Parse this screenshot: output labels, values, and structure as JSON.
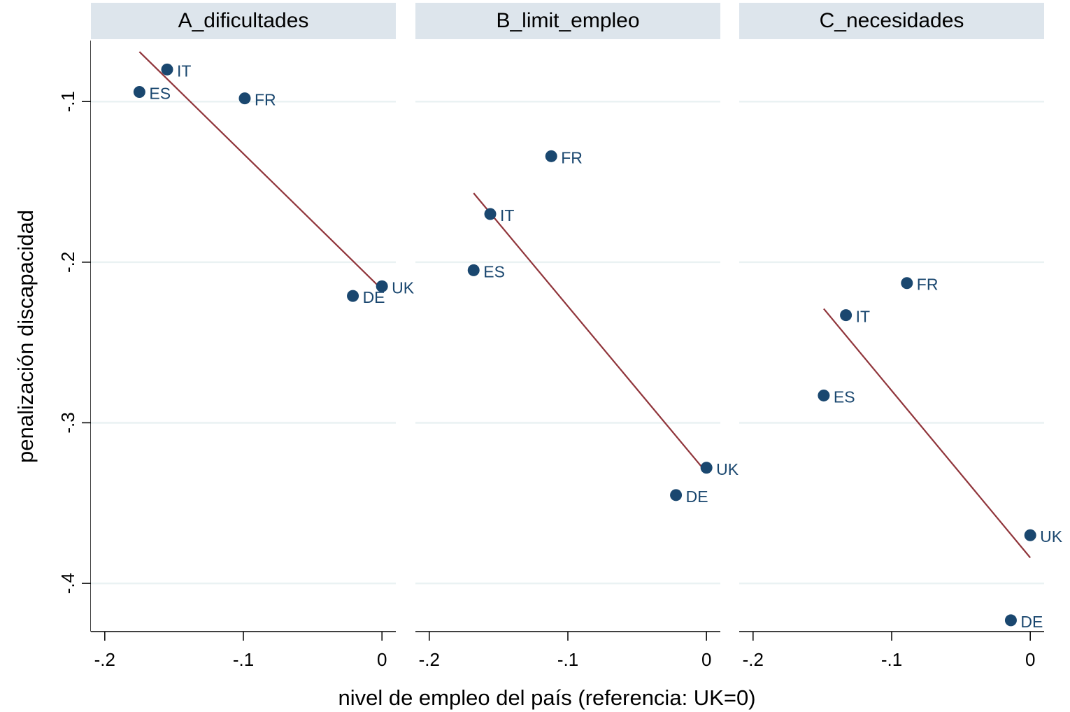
{
  "chart_data": {
    "type": "scatter",
    "xlabel": "nivel de empleo del país (referencia: UK=0)",
    "ylabel": "penalización discapacidad",
    "xlim": [
      -0.21,
      0.01
    ],
    "ylim": [
      -0.43,
      -0.062
    ],
    "x_ticks": [
      -0.2,
      -0.1,
      0
    ],
    "x_tick_labels": [
      "-.2",
      "-.1",
      "0"
    ],
    "y_ticks": [
      -0.1,
      -0.2,
      -0.3,
      -0.4
    ],
    "y_tick_labels": [
      "-.1",
      "-.2",
      "-.3",
      "-.4"
    ],
    "grid": true,
    "colors": {
      "marker": "#1a476f",
      "fit_line": "#90353b",
      "strip": "#dde5ec"
    },
    "panels": [
      {
        "title": "A_dificultades",
        "points": [
          {
            "label": "IT",
            "x": -0.155,
            "y": -0.08
          },
          {
            "label": "ES",
            "x": -0.175,
            "y": -0.094
          },
          {
            "label": "FR",
            "x": -0.099,
            "y": -0.098
          },
          {
            "label": "DE",
            "x": -0.021,
            "y": -0.221
          },
          {
            "label": "UK",
            "x": 0.0,
            "y": -0.215
          }
        ],
        "fit": {
          "x": [
            -0.175,
            0.0
          ],
          "y": [
            -0.069,
            -0.217
          ]
        }
      },
      {
        "title": "B_limit_empleo",
        "points": [
          {
            "label": "FR",
            "x": -0.112,
            "y": -0.134
          },
          {
            "label": "IT",
            "x": -0.156,
            "y": -0.17
          },
          {
            "label": "ES",
            "x": -0.168,
            "y": -0.205
          },
          {
            "label": "UK",
            "x": 0.0,
            "y": -0.328
          },
          {
            "label": "DE",
            "x": -0.022,
            "y": -0.345
          }
        ],
        "fit": {
          "x": [
            -0.168,
            0.0
          ],
          "y": [
            -0.157,
            -0.331
          ]
        }
      },
      {
        "title": "C_necesidades",
        "points": [
          {
            "label": "FR",
            "x": -0.089,
            "y": -0.213
          },
          {
            "label": "IT",
            "x": -0.133,
            "y": -0.233
          },
          {
            "label": "ES",
            "x": -0.149,
            "y": -0.283
          },
          {
            "label": "UK",
            "x": 0.0,
            "y": -0.37
          },
          {
            "label": "DE",
            "x": -0.014,
            "y": -0.423
          }
        ],
        "fit": {
          "x": [
            -0.149,
            0.0
          ],
          "y": [
            -0.229,
            -0.384
          ]
        }
      }
    ]
  }
}
